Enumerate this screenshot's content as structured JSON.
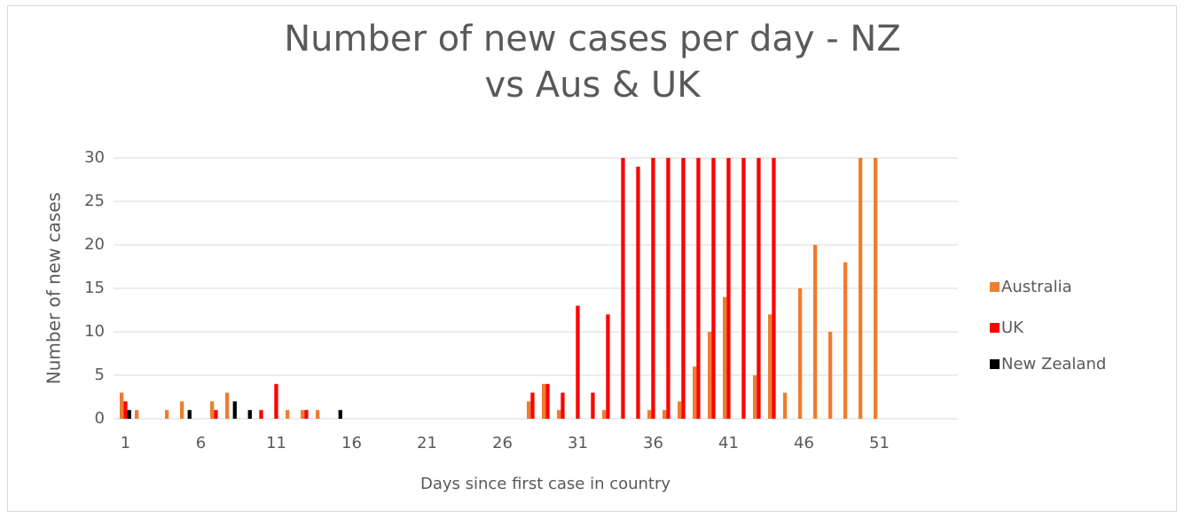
{
  "chart_data": {
    "type": "bar",
    "title": "Number of new cases per day - NZ vs Aus & UK",
    "x_label": "Days since first case in country",
    "y_label": "Number of new cases",
    "categories": [
      1,
      null,
      null,
      null,
      null,
      6,
      null,
      null,
      null,
      null,
      11,
      null,
      null,
      null,
      null,
      16,
      null,
      null,
      null,
      null,
      21,
      null,
      null,
      null,
      null,
      26,
      null,
      null,
      null,
      null,
      31,
      null,
      null,
      null,
      null,
      36,
      null,
      null,
      null,
      null,
      41,
      null,
      null,
      null,
      null,
      46,
      null,
      null,
      null,
      null,
      51,
      null,
      null,
      null,
      null,
      null
    ],
    "series": [
      {
        "name": "Australia",
        "color": "#ed7d31",
        "values": [
          3,
          1,
          0,
          1,
          2,
          0,
          2,
          3,
          0,
          0,
          0,
          1,
          1,
          1,
          0,
          0,
          0,
          0,
          0,
          0,
          0,
          0,
          0,
          0,
          0,
          0,
          0,
          2,
          4,
          1,
          0,
          0,
          1,
          0,
          0,
          1,
          1,
          2,
          6,
          10,
          14,
          0,
          5,
          12,
          3,
          15,
          20,
          10,
          18,
          30,
          30,
          0,
          0,
          0,
          0,
          0
        ]
      },
      {
        "name": "UK",
        "color": "#ff0000",
        "values": [
          2,
          0,
          0,
          0,
          0,
          0,
          1,
          0,
          0,
          1,
          4,
          0,
          1,
          0,
          0,
          0,
          0,
          0,
          0,
          0,
          0,
          0,
          0,
          0,
          0,
          0,
          0,
          3,
          4,
          3,
          13,
          3,
          12,
          30,
          29,
          30,
          30,
          30,
          30,
          30,
          30,
          30,
          30,
          30,
          0,
          0,
          0,
          0,
          0,
          0,
          0,
          0,
          0,
          0,
          0,
          0
        ]
      },
      {
        "name": "New Zealand",
        "color": "#000000",
        "values": [
          1,
          0,
          0,
          0,
          1,
          0,
          0,
          2,
          1,
          0,
          0,
          0,
          0,
          0,
          1,
          0,
          0,
          0,
          0,
          0,
          0,
          0,
          0,
          0,
          0,
          0,
          0,
          0,
          0,
          0,
          0,
          0,
          0,
          0,
          0,
          0,
          0,
          0,
          0,
          0,
          0,
          0,
          0,
          0,
          0,
          0,
          0,
          0,
          0,
          0,
          0,
          0,
          0,
          0,
          0,
          0
        ]
      }
    ],
    "ylim": [
      0,
      30
    ],
    "yticks": [
      0,
      5,
      10,
      15,
      20,
      25,
      30
    ],
    "grid": true,
    "legend": "right"
  }
}
